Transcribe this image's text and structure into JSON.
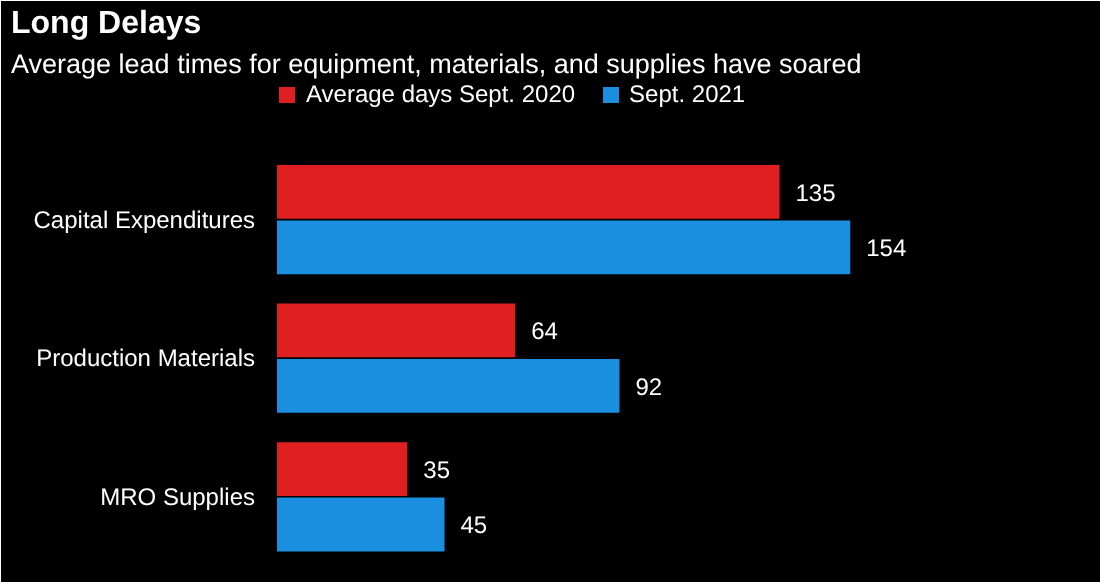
{
  "chart_data": {
    "type": "bar",
    "orientation": "horizontal",
    "title": "Long Delays",
    "subtitle": "Average lead times for equipment, materials, and supplies have soared",
    "categories": [
      "Capital Expenditures",
      "Production Materials",
      "MRO Supplies"
    ],
    "series": [
      {
        "name": "Average days Sept. 2020",
        "color": "#e02020",
        "values": [
          135,
          64,
          35
        ]
      },
      {
        "name": "Sept. 2021",
        "color": "#1a8fe0",
        "values": [
          154,
          92,
          45
        ]
      }
    ],
    "data_labels": true,
    "legend": "top left",
    "grid": false
  }
}
